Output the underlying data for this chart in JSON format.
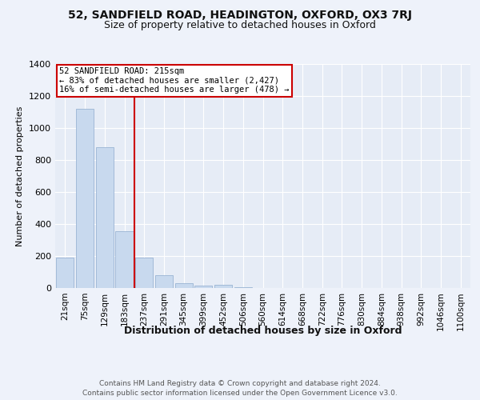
{
  "title1": "52, SANDFIELD ROAD, HEADINGTON, OXFORD, OX3 7RJ",
  "title2": "Size of property relative to detached houses in Oxford",
  "xlabel": "Distribution of detached houses by size in Oxford",
  "ylabel": "Number of detached properties",
  "categories": [
    "21sqm",
    "75sqm",
    "129sqm",
    "183sqm",
    "237sqm",
    "291sqm",
    "345sqm",
    "399sqm",
    "452sqm",
    "506sqm",
    "560sqm",
    "614sqm",
    "668sqm",
    "722sqm",
    "776sqm",
    "830sqm",
    "884sqm",
    "938sqm",
    "992sqm",
    "1046sqm",
    "1100sqm"
  ],
  "values": [
    190,
    1120,
    880,
    355,
    190,
    80,
    30,
    15,
    20,
    5,
    0,
    0,
    0,
    0,
    0,
    0,
    0,
    0,
    0,
    0,
    0
  ],
  "bar_color": "#c8d9ee",
  "bar_edge_color": "#9ab4d4",
  "vline_x": 3.5,
  "vline_color": "#cc0000",
  "annotation_title": "52 SANDFIELD ROAD: 215sqm",
  "annotation_line1": "← 83% of detached houses are smaller (2,427)",
  "annotation_line2": "16% of semi-detached houses are larger (478) →",
  "annotation_box_edgecolor": "#cc0000",
  "ylim": [
    0,
    1400
  ],
  "yticks": [
    0,
    200,
    400,
    600,
    800,
    1000,
    1200,
    1400
  ],
  "footer": "Contains HM Land Registry data © Crown copyright and database right 2024.\nContains public sector information licensed under the Open Government Licence v3.0.",
  "bg_color": "#eef2fa",
  "plot_bg_color": "#e6ecf6",
  "title1_fontsize": 10,
  "title2_fontsize": 9,
  "ylabel_fontsize": 8,
  "xlabel_fontsize": 9,
  "tick_fontsize": 7.5,
  "ytick_fontsize": 8,
  "ann_fontsize": 7.5,
  "footer_fontsize": 6.5
}
